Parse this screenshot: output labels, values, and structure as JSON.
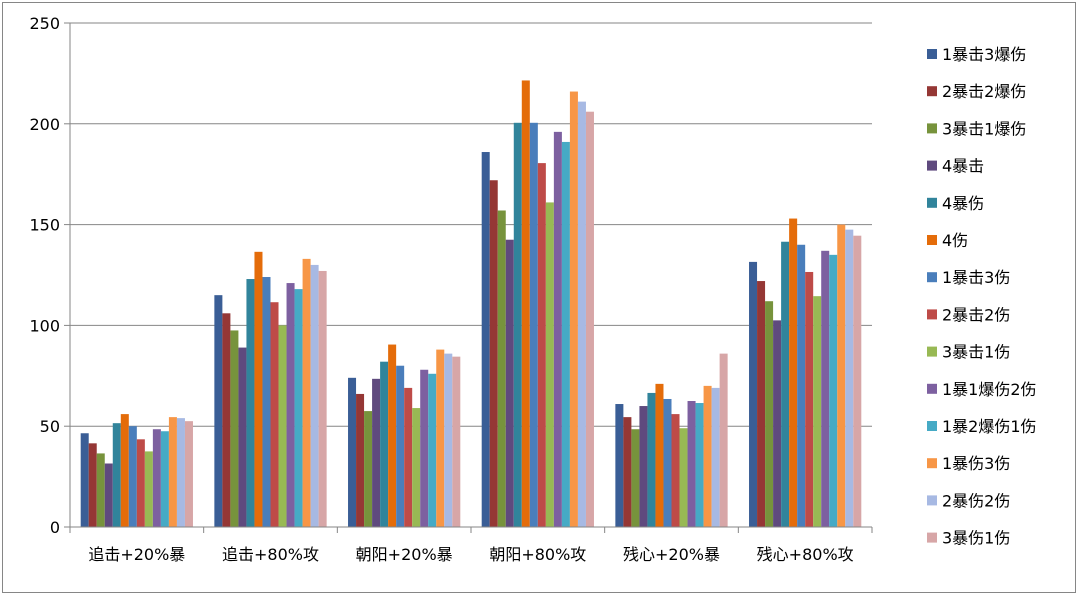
{
  "chart_data": {
    "type": "bar",
    "categories": [
      "追击+20%暴",
      "追击+80%攻",
      "朝阳+20%暴",
      "朝阳+80%攻",
      "残心+20%暴",
      "残心+80%攻"
    ],
    "ylim": [
      0,
      250
    ],
    "yticks": [
      0,
      50,
      100,
      150,
      200,
      250
    ],
    "grid": true,
    "legend_position": "right",
    "series": [
      {
        "name": "1暴击3爆伤",
        "color": "#3A5E96",
        "values": [
          46.5,
          115,
          74,
          186,
          61,
          131.5
        ]
      },
      {
        "name": "2暴击2爆伤",
        "color": "#953735",
        "values": [
          41.5,
          106,
          66,
          172,
          54.5,
          122
        ]
      },
      {
        "name": "3暴击1爆伤",
        "color": "#77933C",
        "values": [
          36.5,
          97.5,
          57.5,
          157,
          48.5,
          112
        ]
      },
      {
        "name": "4暴击",
        "color": "#5F4A7E",
        "values": [
          31.5,
          89,
          73.5,
          142.5,
          60,
          102.5
        ]
      },
      {
        "name": "4暴伤",
        "color": "#31849B",
        "values": [
          51.5,
          123,
          82,
          200.5,
          66.5,
          141.5
        ]
      },
      {
        "name": "4伤",
        "color": "#E46C0A",
        "values": [
          56,
          136.5,
          90.5,
          221.5,
          71,
          153
        ]
      },
      {
        "name": "1暴击3伤",
        "color": "#4A7EBB",
        "values": [
          50,
          124,
          80,
          200.5,
          63.5,
          140
        ]
      },
      {
        "name": "2暴击2伤",
        "color": "#BE4B48",
        "values": [
          43.5,
          111.5,
          69,
          180.5,
          56,
          126.5
        ]
      },
      {
        "name": "3暴击1伤",
        "color": "#98B954",
        "values": [
          37.5,
          100,
          59,
          161,
          49,
          114.5
        ]
      },
      {
        "name": "1暴1爆伤2伤",
        "color": "#7D60A0",
        "values": [
          48.5,
          121,
          78,
          196,
          62.5,
          137
        ]
      },
      {
        "name": "1暴2爆伤1伤",
        "color": "#46AAC5",
        "values": [
          47.5,
          118,
          76,
          191,
          61.5,
          135
        ]
      },
      {
        "name": "1暴伤3伤",
        "color": "#F79646",
        "values": [
          54.5,
          133,
          88,
          216,
          70,
          150
        ]
      },
      {
        "name": "2暴伤2伤",
        "color": "#A7B9E3",
        "values": [
          54,
          130,
          86,
          211,
          69,
          147.5
        ]
      },
      {
        "name": "3暴伤1伤",
        "color": "#D7A6A7",
        "values": [
          52.5,
          127,
          84.5,
          206,
          86,
          144.5
        ]
      }
    ]
  }
}
